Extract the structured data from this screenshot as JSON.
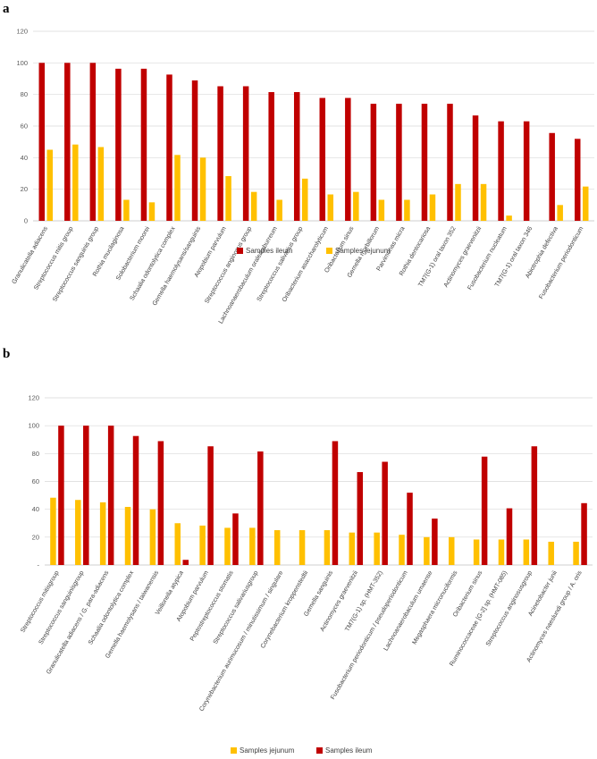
{
  "chart_data": [
    {
      "panel": "a",
      "type": "bar",
      "ylim": [
        0,
        120
      ],
      "yticks": [
        "0",
        "20",
        "40",
        "60",
        "80",
        "100",
        "120"
      ],
      "grid": true,
      "legend_position": "bottom",
      "categories": [
        "Granulicatella adiacens",
        "Streptococcus mitis group",
        "Streptococcus sanguinis group",
        "Rothia mucilaginosa",
        "Solobacterium moorei",
        "Schaalia odontolytica complex",
        "Gemella haemolysans/sanguinis",
        "Atopobium parvulum",
        "Streptococcus anginosus group",
        "Lachnoanaerobaculum orale/saburreum",
        "Streptococcus salivarius group",
        "Oribacterium asaccharolyticum",
        "Oribacterium sinus",
        "Gemella morbillorum",
        "Parvimonas micra",
        "Rothia dentocariosa",
        "TM7(G-1) oral taxon 352",
        "Actinomyces graevenitzii",
        "Fusobacterium nucleatum",
        "TM7(G-1) oral taxon 346",
        "Abiotrophia defectiva",
        "Fusobacterium periodonticum"
      ],
      "series": [
        {
          "name": "Samples ileum",
          "color": "#c00000",
          "values": [
            100,
            100,
            100,
            96.3,
            96.3,
            92.6,
            88.9,
            85.2,
            85.2,
            81.5,
            81.5,
            77.8,
            77.8,
            74.1,
            74.1,
            74.1,
            74.1,
            66.7,
            63.0,
            63.0,
            55.6,
            51.9
          ]
        },
        {
          "name": "Samples jejunum",
          "color": "#ffc000",
          "values": [
            45.0,
            48.3,
            46.7,
            13.3,
            11.7,
            41.7,
            40.0,
            28.3,
            18.3,
            13.3,
            26.7,
            16.7,
            18.3,
            13.3,
            13.3,
            16.7,
            23.3,
            23.3,
            3.3,
            0,
            10.0,
            21.7
          ]
        }
      ]
    },
    {
      "panel": "b",
      "type": "bar",
      "ylim": [
        0,
        120
      ],
      "yticks": [
        "-",
        "20",
        "40",
        "60",
        "80",
        "100",
        "120"
      ],
      "grid": true,
      "legend_position": "bottom",
      "categories": [
        "Streptococcus mitisgroup",
        "Streptococcus sanguinisgroup",
        "Granulicatella adiacens / G. para-adiacens",
        "Schaalia odontolytica complex",
        "Gemella haemolysans / taiwanensis",
        "Veillonella atypica",
        "Atopobium parvulum",
        "Peptostreptococcus stomatis",
        "Streptococcus salivariusgroup",
        "Corynebacterium aurimucosum / minutissimum / singulare",
        "Corynebacterium kroppenstedtii",
        "Gemella sanguinis",
        "Actinomyces graevenitzii",
        "TM7(G-1) sp. (HMT-352)",
        "Fusobacterium periodonticum / pseudoperiodonticum",
        "Lachnoanaerobaculum umaense",
        "Megasphaera micronuciformis",
        "Oribacterium sinus",
        "Ruminococcaceae [G-2] sp. (HMT-085)",
        "Streptococcus anginosusgroup",
        "Acinetobacter junii",
        "Actinomyces naeslundi group / A. oris"
      ],
      "series": [
        {
          "name": "Samples jejunum",
          "color": "#ffc000",
          "values": [
            48.3,
            46.7,
            45.0,
            41.7,
            40.0,
            30.0,
            28.3,
            26.7,
            26.7,
            25.0,
            25.0,
            25.0,
            23.3,
            23.3,
            21.7,
            20.0,
            20.0,
            18.3,
            18.3,
            18.3,
            16.7,
            16.7
          ]
        },
        {
          "name": "Samples ileum",
          "color": "#c00000",
          "values": [
            100,
            100,
            100,
            92.6,
            88.9,
            3.7,
            85.2,
            37.0,
            81.5,
            0,
            0,
            88.9,
            66.7,
            74.1,
            51.9,
            33.3,
            0,
            77.8,
            40.7,
            85.2,
            0,
            44.4
          ]
        }
      ]
    }
  ]
}
